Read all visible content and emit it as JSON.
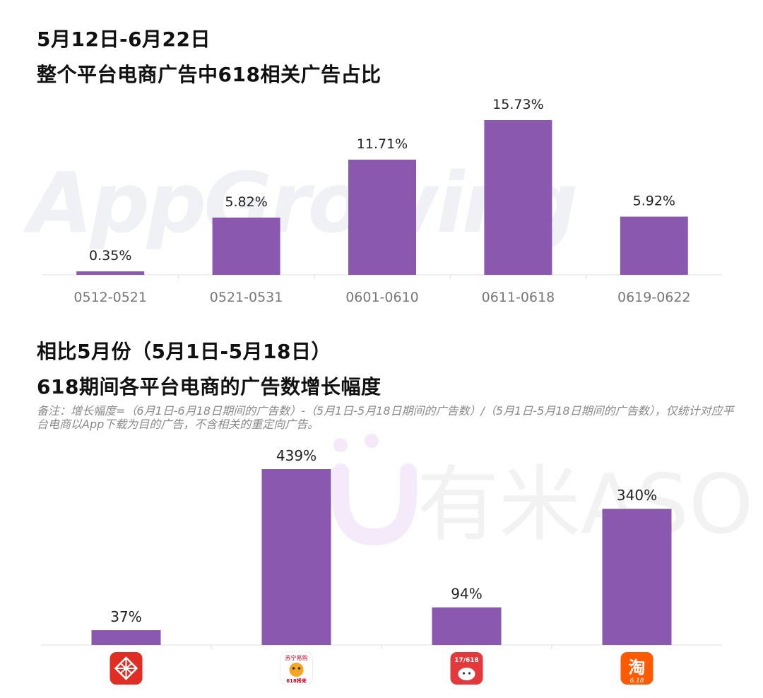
{
  "section1": {
    "title_line1": "5月12日-6月22日",
    "title_line2": "整个平台电商广告中618相关广告占比"
  },
  "section2": {
    "title_line1": "相比5月份（5月1日-5月18日）",
    "title_line2": "618期间各平台电商的广告数增长幅度",
    "note": "备注：增长幅度=（6月1日-6月18日期间的广告数）-（5月1日-5月18日期间的广告数）/（5月1日-5月18日期间的广告数），仅统计对应平台电商以App下载为目的广告，不含相关的重定向广告。"
  },
  "watermarks": {
    "appgrowing": "AppGrowing",
    "youmi": "有米ASO"
  },
  "colors": {
    "bar": "#8b58b0",
    "axis": "#dddddd",
    "tick_text": "#777777",
    "label_text": "#222222"
  },
  "chart_data": [
    {
      "type": "bar",
      "title": "5月12日-6月22日 整个平台电商广告中618相关广告占比",
      "categories": [
        "0512-0521",
        "0521-0531",
        "0601-0610",
        "0611-0618",
        "0619-0622"
      ],
      "values": [
        0.35,
        5.82,
        11.71,
        15.73,
        5.92
      ],
      "labels": [
        "0.35%",
        "5.82%",
        "11.71%",
        "15.73%",
        "5.92%"
      ],
      "unit": "%",
      "ylim": [
        0,
        15.73
      ],
      "grid": false
    },
    {
      "type": "bar",
      "title": "618期间各平台电商的广告数增长幅度",
      "categories": [
        "pinduoduo-app-icon",
        "suning-app-icon",
        "jd-app-icon",
        "taobao-app-icon"
      ],
      "values": [
        37,
        439,
        94,
        340
      ],
      "labels": [
        "37%",
        "439%",
        "94%",
        "340%"
      ],
      "unit": "%",
      "ylim": [
        0,
        439
      ],
      "grid": false
    }
  ],
  "icons": {
    "suning_text": "苏宁易购",
    "suning_618": "618将来",
    "jd_text": "17/618",
    "taobao_char": "淘",
    "taobao_sub": "6.18"
  }
}
